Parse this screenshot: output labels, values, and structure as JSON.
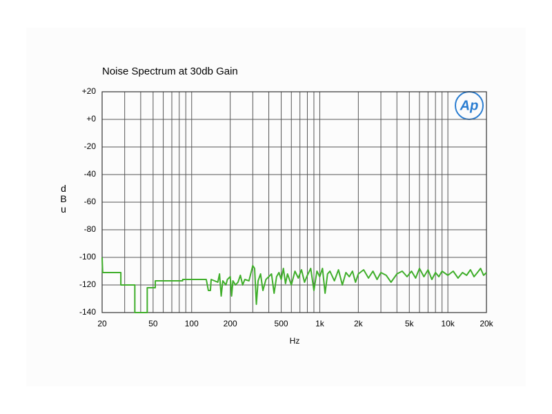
{
  "chart_data": {
    "type": "line",
    "title": "Noise Spectrum at 30db Gain",
    "logo": "Ap",
    "x_label": "Hz",
    "y_label": "dBu",
    "xscale": "log",
    "grid": true,
    "xlim": [
      20,
      20000
    ],
    "ylim": [
      -140,
      20
    ],
    "xticks": [
      20,
      50,
      100,
      200,
      500,
      {
        "value": 1000,
        "label": "1k"
      },
      {
        "value": 2000,
        "label": "2k"
      },
      {
        "value": 5000,
        "label": "5k"
      },
      {
        "value": 10000,
        "label": "10k"
      },
      {
        "value": 20000,
        "label": "20k"
      }
    ],
    "xminor_grid": [
      30,
      40,
      60,
      70,
      80,
      90,
      300,
      400,
      600,
      700,
      800,
      900,
      3000,
      4000,
      6000,
      7000,
      8000,
      9000
    ],
    "yticks": [
      {
        "value": 20,
        "label": "+20"
      },
      {
        "value": 0,
        "label": "+0"
      },
      -20,
      -40,
      -60,
      -80,
      -100,
      -120,
      -140
    ],
    "series": [
      {
        "color": "#3fae2a",
        "x": [
          20,
          20.2,
          28,
          28,
          36,
          36,
          45,
          45,
          52,
          52,
          85,
          85,
          130,
          135,
          140,
          142,
          160,
          165,
          170,
          175,
          185,
          190,
          200,
          205,
          210,
          220,
          230,
          240,
          250,
          260,
          280,
          300,
          310,
          320,
          330,
          345,
          360,
          380,
          400,
          420,
          440,
          460,
          480,
          500,
          520,
          540,
          560,
          600,
          640,
          680,
          720,
          760,
          800,
          850,
          900,
          950,
          1000,
          1050,
          1100,
          1150,
          1200,
          1300,
          1400,
          1500,
          1600,
          1700,
          1800,
          1900,
          2000,
          2200,
          2400,
          2600,
          2800,
          3000,
          3300,
          3600,
          4000,
          4400,
          4800,
          5200,
          5600,
          6000,
          6500,
          7000,
          7500,
          8000,
          8500,
          9000,
          10000,
          11000,
          12000,
          13000,
          14000,
          15000,
          16000,
          17000,
          18000,
          19000,
          20000
        ],
        "values": [
          -100,
          -111,
          -111,
          -120,
          -120,
          -140,
          -140,
          -122,
          -122,
          -117,
          -117,
          -116,
          -116,
          -124,
          -124,
          -116,
          -118,
          -112,
          -128,
          -117,
          -120,
          -116,
          -114,
          -128,
          -117,
          -120,
          -118,
          -113,
          -120,
          -116,
          -117,
          -106,
          -108,
          -134,
          -117,
          -112,
          -124,
          -116,
          -114,
          -112,
          -126,
          -114,
          -111,
          -116,
          -108,
          -119,
          -112,
          -120,
          -110,
          -115,
          -109,
          -118,
          -113,
          -108,
          -124,
          -110,
          -114,
          -108,
          -126,
          -112,
          -110,
          -117,
          -109,
          -120,
          -111,
          -114,
          -110,
          -118,
          -112,
          -109,
          -115,
          -110,
          -116,
          -111,
          -113,
          -118,
          -112,
          -110,
          -114,
          -110,
          -115,
          -108,
          -114,
          -109,
          -116,
          -111,
          -114,
          -110,
          -113,
          -110,
          -115,
          -111,
          -113,
          -109,
          -114,
          -111,
          -108,
          -113,
          -111
        ]
      }
    ]
  }
}
